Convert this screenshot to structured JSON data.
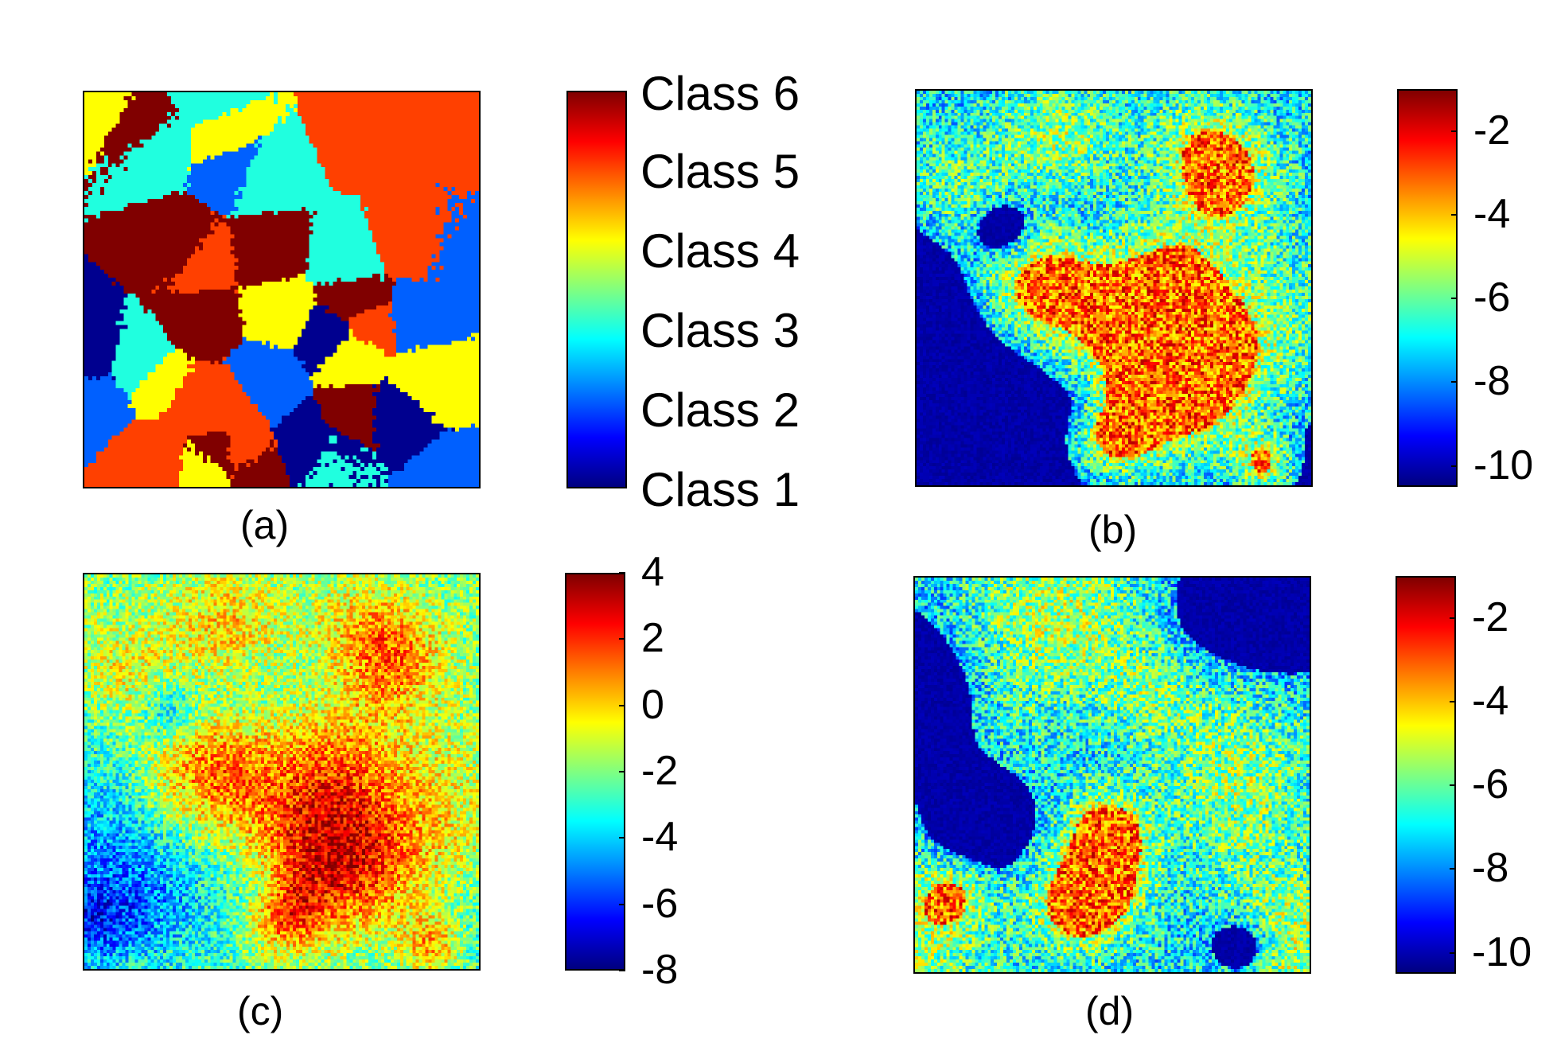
{
  "chart_data": [
    {
      "type": "heatmap",
      "caption": "(a)",
      "colorbar": {
        "kind": "categorical",
        "labels": [
          "Class 6",
          "Class 5",
          "Class 4",
          "Class 3",
          "Class 2",
          "Class 1"
        ]
      },
      "colormap": "jet"
    },
    {
      "type": "heatmap",
      "caption": "(b)",
      "colorbar": {
        "kind": "continuous",
        "range": [
          -10.5,
          -1
        ],
        "ticks": [
          "-2",
          "-4",
          "-6",
          "-8",
          "-10"
        ]
      },
      "colormap": "jet"
    },
    {
      "type": "heatmap",
      "caption": "(c)",
      "colorbar": {
        "kind": "continuous",
        "range": [
          -8,
          4
        ],
        "ticks": [
          "4",
          "2",
          "0",
          "-2",
          "-4",
          "-6",
          "-8"
        ]
      },
      "colormap": "jet"
    },
    {
      "type": "heatmap",
      "caption": "(d)",
      "colorbar": {
        "kind": "continuous",
        "range": [
          -10.5,
          -1
        ],
        "ticks": [
          "-2",
          "-4",
          "-6",
          "-8",
          "-10"
        ]
      },
      "colormap": "jet"
    }
  ]
}
